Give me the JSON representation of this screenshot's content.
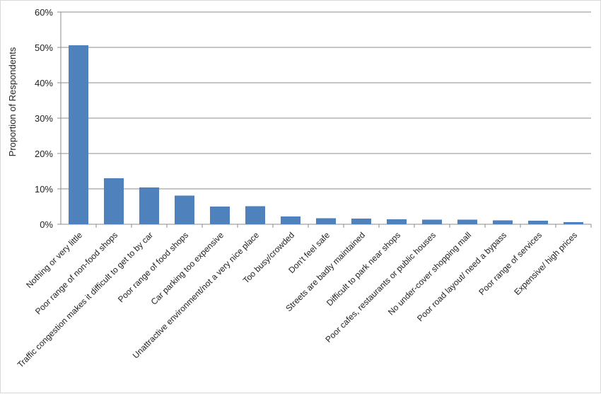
{
  "chart_data": {
    "type": "bar",
    "title": "",
    "xlabel": "",
    "ylabel": "Proportion of Respondents",
    "ylim": [
      0,
      60
    ],
    "yticks": [
      0,
      10,
      20,
      30,
      40,
      50,
      60
    ],
    "ytick_labels": [
      "0%",
      "10%",
      "20%",
      "30%",
      "40%",
      "50%",
      "60%"
    ],
    "grid": "horizontal",
    "legend": "none",
    "bar_color": "#4F81BD",
    "categories": [
      "Nothing or very little",
      "Poor range of non-food shops",
      "Traffic congestion makes it difficult to get to by car",
      "Poor range of food shops",
      "Car parking too expensive",
      "Unattractive environment/not a very nice place",
      "Too busy/crowded",
      "Don't feel safe",
      "Streets are badly maintained",
      "Difficult to park near shops",
      "Poor cafes, restaurants or public houses",
      "No under-cover shopping mall",
      "Poor road layout/ need a bypass",
      "Poor range of services",
      "Expensive/ high prices"
    ],
    "values": [
      50.6,
      13.0,
      10.4,
      8.1,
      5.0,
      5.1,
      2.2,
      1.7,
      1.6,
      1.4,
      1.3,
      1.3,
      1.1,
      1.0,
      0.6
    ]
  }
}
